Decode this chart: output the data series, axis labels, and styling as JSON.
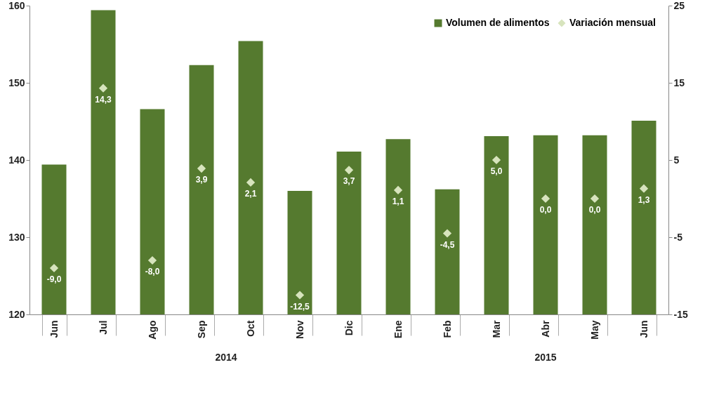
{
  "chart_data": {
    "type": "bar",
    "categories": [
      "Jun",
      "Jul",
      "Ago",
      "Sep",
      "Oct",
      "Nov",
      "Dic",
      "Ene",
      "Feb",
      "Mar",
      "Abr",
      "May",
      "Jun"
    ],
    "series": [
      {
        "name": "Volumen de alimentos",
        "color": "#557a2f",
        "values": [
          139.4,
          159.4,
          146.6,
          152.3,
          155.4,
          136.0,
          141.1,
          142.7,
          136.2,
          143.1,
          143.2,
          143.2,
          145.1
        ]
      },
      {
        "name": "Variación mensual",
        "type": "scatter",
        "axis": "y2",
        "color": "#d7e4bd",
        "marker": "diamond",
        "values": [
          -9.0,
          14.3,
          -8.0,
          3.9,
          2.1,
          -12.5,
          3.7,
          1.1,
          -4.5,
          5.0,
          0.0,
          0.0,
          1.3
        ],
        "value_labels": [
          "-9,0",
          "14,3",
          "-8,0",
          "3,9",
          "2,1",
          "-12,5",
          "3,7",
          "1,1",
          "-4,5",
          "5,0",
          "0,0",
          "0,0",
          "1,3"
        ]
      }
    ],
    "ylim": [
      120,
      160
    ],
    "yticks": [
      120,
      130,
      140,
      150,
      160
    ],
    "y2lim": [
      -15,
      25
    ],
    "y2ticks": [
      -15,
      -5,
      5,
      15,
      25
    ],
    "legend": "top right",
    "grid": false,
    "annotations": [
      "2014",
      "2015"
    ]
  }
}
